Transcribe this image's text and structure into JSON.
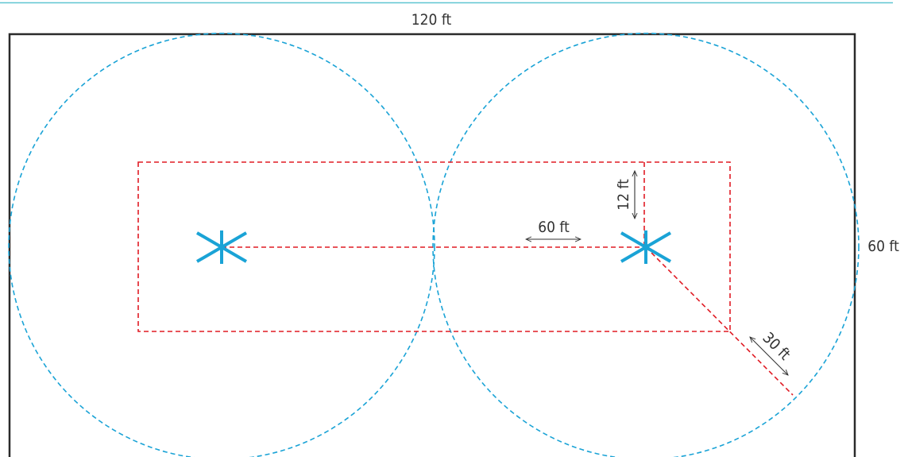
{
  "labels": {
    "room_width": "120 ft",
    "room_height": "60 ft",
    "sprinkler_spacing": "60 ft",
    "wall_offset": "12 ft",
    "coverage_radius": "30 ft"
  },
  "colors": {
    "top_rule": "#5fc6d1",
    "room_outline": "#2b2b2b",
    "coverage_circle": "#1aa3d6",
    "sprinkler_symbol": "#1aa3d6",
    "layout_dashed": "#e01b24",
    "dimension_arrow": "#333333"
  },
  "icons": {
    "sprinkler": "asterisk-sprinkler-icon"
  }
}
